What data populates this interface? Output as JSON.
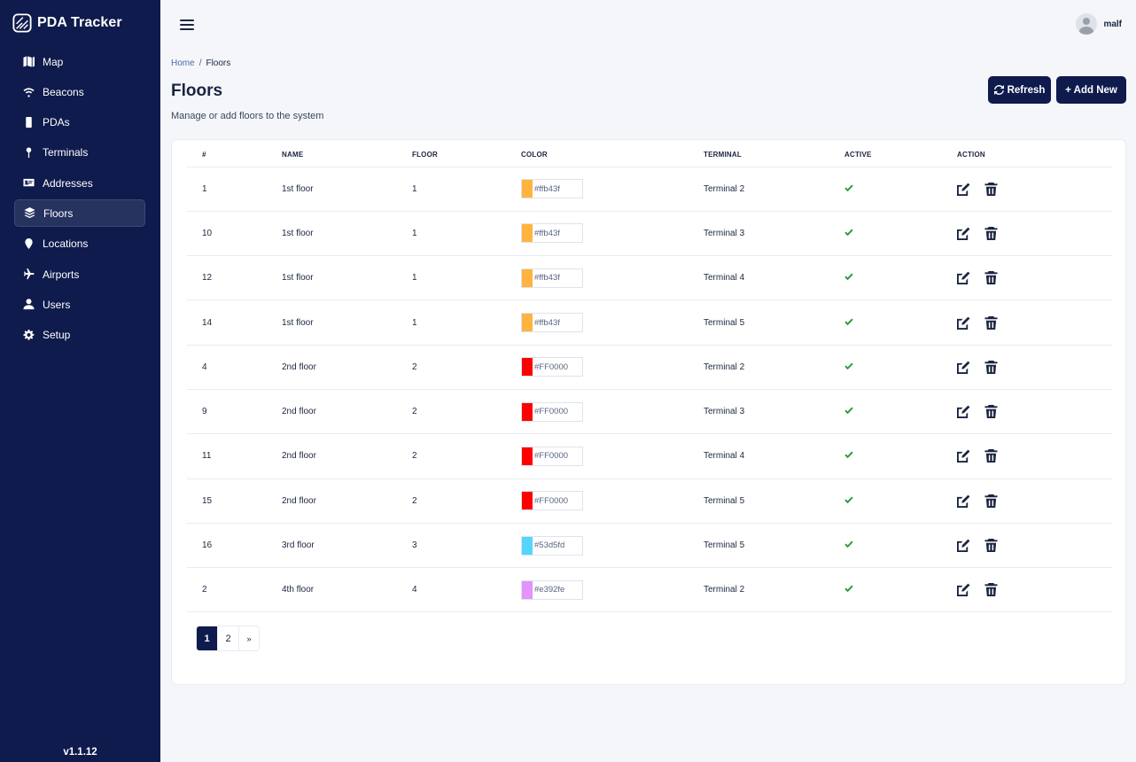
{
  "app": {
    "name": "PDA Tracker",
    "version": "v1.1.12"
  },
  "sidebar": {
    "items": [
      {
        "label": "Map",
        "icon": "map-icon",
        "active": false
      },
      {
        "label": "Beacons",
        "icon": "wifi-icon",
        "active": false
      },
      {
        "label": "PDAs",
        "icon": "mobile-icon",
        "active": false
      },
      {
        "label": "Terminals",
        "icon": "pin-icon",
        "active": false
      },
      {
        "label": "Addresses",
        "icon": "address-card-icon",
        "active": false
      },
      {
        "label": "Floors",
        "icon": "layers-icon",
        "active": true
      },
      {
        "label": "Locations",
        "icon": "location-marker-icon",
        "active": false
      },
      {
        "label": "Airports",
        "icon": "plane-icon",
        "active": false
      },
      {
        "label": "Users",
        "icon": "user-icon",
        "active": false
      },
      {
        "label": "Setup",
        "icon": "gear-icon",
        "active": false
      }
    ]
  },
  "topbar": {
    "username": "malf"
  },
  "breadcrumb": {
    "home": "Home",
    "separator": "/",
    "current": "Floors"
  },
  "header": {
    "title": "Floors",
    "subtitle": "Manage or add floors to the system",
    "refresh_label": "Refresh",
    "add_label": "+ Add New"
  },
  "table": {
    "columns": [
      "#",
      "NAME",
      "FLOOR",
      "COLOR",
      "TERMINAL",
      "ACTIVE",
      "ACTION"
    ],
    "rows": [
      {
        "id": "1",
        "name": "1st floor",
        "floor": "1",
        "color": "#ffb43f",
        "color_hex": "#ffb43f",
        "terminal": "Terminal 2",
        "active": true
      },
      {
        "id": "10",
        "name": "1st floor",
        "floor": "1",
        "color": "#ffb43f",
        "color_hex": "#ffb43f",
        "terminal": "Terminal 3",
        "active": true
      },
      {
        "id": "12",
        "name": "1st floor",
        "floor": "1",
        "color": "#ffb43f",
        "color_hex": "#ffb43f",
        "terminal": "Terminal 4",
        "active": true
      },
      {
        "id": "14",
        "name": "1st floor",
        "floor": "1",
        "color": "#ffb43f",
        "color_hex": "#ffb43f",
        "terminal": "Terminal 5",
        "active": true
      },
      {
        "id": "4",
        "name": "2nd floor",
        "floor": "2",
        "color": "#FF0000",
        "color_hex": "#FF0000",
        "terminal": "Terminal 2",
        "active": true
      },
      {
        "id": "9",
        "name": "2nd floor",
        "floor": "2",
        "color": "#FF0000",
        "color_hex": "#FF0000",
        "terminal": "Terminal 3",
        "active": true
      },
      {
        "id": "11",
        "name": "2nd floor",
        "floor": "2",
        "color": "#FF0000",
        "color_hex": "#FF0000",
        "terminal": "Terminal 4",
        "active": true
      },
      {
        "id": "15",
        "name": "2nd floor",
        "floor": "2",
        "color": "#FF0000",
        "color_hex": "#FF0000",
        "terminal": "Terminal 5",
        "active": true
      },
      {
        "id": "16",
        "name": "3rd floor",
        "floor": "3",
        "color": "#53d5fd",
        "color_hex": "#53d5fd",
        "terminal": "Terminal 5",
        "active": true
      },
      {
        "id": "2",
        "name": "4th floor",
        "floor": "4",
        "color": "#e392fe",
        "color_hex": "#e392fe",
        "terminal": "Terminal 2",
        "active": true
      }
    ]
  },
  "pagination": {
    "pages": [
      "1",
      "2"
    ],
    "current": "1",
    "next": "»"
  },
  "colors": {
    "sidebar_bg": "#0f1b4c",
    "accent": "#0f1b4c",
    "check": "#2e9c3e"
  }
}
